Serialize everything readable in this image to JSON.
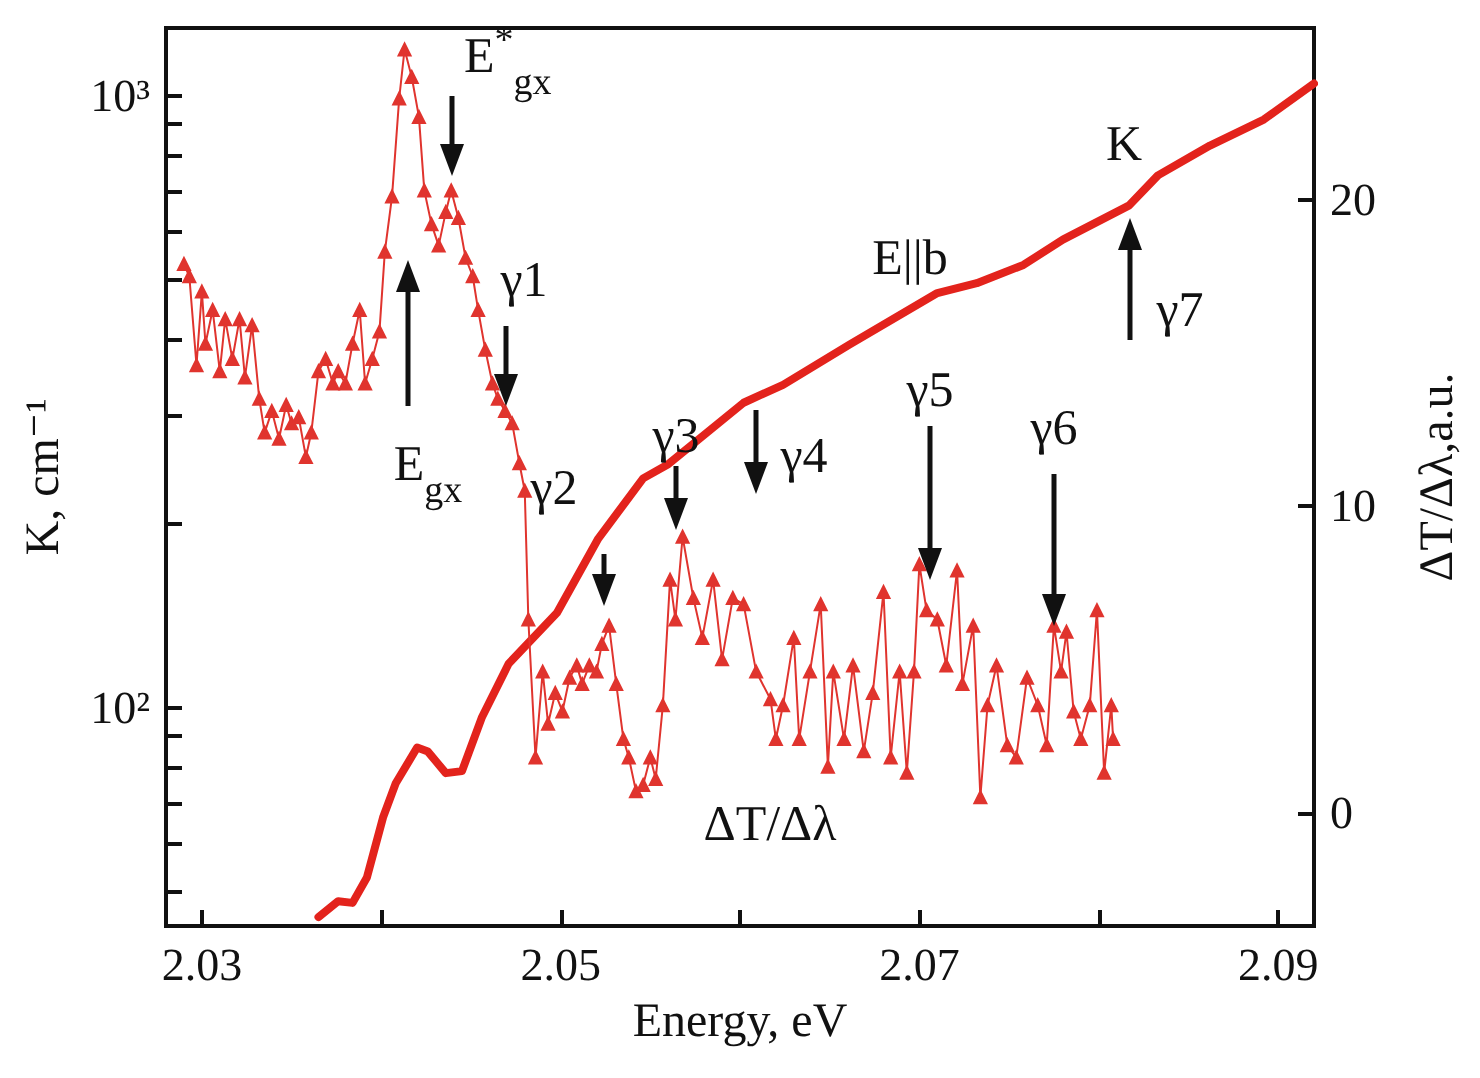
{
  "chart_data": {
    "type": "line",
    "xlabel": "Energy, eV",
    "ylabel": "K, cm⁻¹",
    "y2label": "ΔT/Δλ,a.u.",
    "xlim": [
      2.028,
      2.092
    ],
    "xticks": [
      2.03,
      {
        "value": 2.04,
        "label": null
      },
      2.05,
      {
        "value": 2.06,
        "label": null
      },
      2.07,
      {
        "value": 2.08,
        "label": null
      },
      2.09
    ],
    "ylim": [
      44,
      1290
    ],
    "log": "y",
    "yticks": [
      {
        "value": 50,
        "label": null
      },
      {
        "value": 60,
        "label": null
      },
      {
        "value": 70,
        "label": null
      },
      {
        "value": 80,
        "label": null
      },
      {
        "value": 90,
        "label": null
      },
      {
        "value": 100,
        "label": "10²"
      },
      {
        "value": 200,
        "label": null
      },
      {
        "value": 300,
        "label": null
      },
      {
        "value": 400,
        "label": null
      },
      {
        "value": 500,
        "label": null
      },
      {
        "value": 600,
        "label": null
      },
      {
        "value": 700,
        "label": null
      },
      {
        "value": 800,
        "label": null
      },
      {
        "value": 900,
        "label": null
      },
      {
        "value": 1000,
        "label": "10³"
      }
    ],
    "y2lim": [
      -3.7,
      25.6
    ],
    "y2ticks": [
      0,
      10,
      20
    ],
    "grid": false,
    "legend": false,
    "series": [
      {
        "name": "K",
        "color": "#e3231c",
        "marker": "none",
        "x": [
          2.0365,
          2.0376,
          2.0384,
          2.0392,
          2.0401,
          2.0408,
          2.042,
          2.0426,
          2.0436,
          2.0445,
          2.0456,
          2.0471,
          2.0498,
          2.0521,
          2.0546,
          2.056,
          2.0602,
          2.0624,
          2.0661,
          2.071,
          2.0732,
          2.0758,
          2.078,
          2.0817,
          2.0833,
          2.0862,
          2.0892,
          2.092
        ],
        "values": [
          45.5,
          48.3,
          48,
          52.8,
          66.2,
          75.2,
          86.1,
          84.8,
          78.2,
          78.8,
          96.3,
          118,
          143,
          189,
          237,
          250,
          315,
          337,
          392,
          476,
          494,
          529,
          582,
          662,
          741,
          829,
          914,
          1047
        ]
      },
      {
        "name": "ΔT/Δλ",
        "color": "#e0342e",
        "marker": "triangle",
        "axis": "y2",
        "x": [
          2.029,
          2.0293,
          2.0297,
          2.03,
          2.0302,
          2.0306,
          2.031,
          2.0313,
          2.0317,
          2.0321,
          2.0324,
          2.0328,
          2.0332,
          2.0335,
          2.0339,
          2.0343,
          2.0347,
          2.035,
          2.0354,
          2.0358,
          2.0361,
          2.0365,
          2.0369,
          2.0373,
          2.0376,
          2.038,
          2.0384,
          2.0388,
          2.0391,
          2.0395,
          2.0399,
          2.0402,
          2.0406,
          2.041,
          2.0413,
          2.0417,
          2.0421,
          2.0424,
          2.0428,
          2.0432,
          2.0436,
          2.0439,
          2.0443,
          2.0447,
          2.0451,
          2.0454,
          2.0458,
          2.0462,
          2.0465,
          2.0469,
          2.0473,
          2.0477,
          2.048,
          2.0482,
          2.0486,
          2.049,
          2.0493,
          2.0497,
          2.0501,
          2.0505,
          2.0509,
          2.0512,
          2.0516,
          2.052,
          2.0523,
          2.0527,
          2.0531,
          2.0535,
          2.0538,
          2.0542,
          2.0546,
          2.055,
          2.0553,
          2.0557,
          2.0561,
          2.0564,
          2.0568,
          2.0574,
          2.0579,
          2.0585,
          2.059,
          2.0596,
          2.0602,
          2.0609,
          2.0617,
          2.062,
          2.0624,
          2.063,
          2.0633,
          2.0639,
          2.0645,
          2.0649,
          2.0652,
          2.0658,
          2.0663,
          2.0669,
          2.0674,
          2.068,
          2.0684,
          2.0689,
          2.0693,
          2.0697,
          2.07,
          2.0704,
          2.071,
          2.0715,
          2.0721,
          2.0724,
          2.073,
          2.0734,
          2.0738,
          2.0743,
          2.0749,
          2.0754,
          2.076,
          2.0766,
          2.0771,
          2.0775,
          2.0779,
          2.0782,
          2.0786,
          2.079,
          2.0795,
          2.0799,
          2.0803,
          2.0807,
          2.0808
        ],
        "values": [
          17.9,
          17.5,
          14.6,
          17,
          15.3,
          16.4,
          14.4,
          16.1,
          14.8,
          16.1,
          14.2,
          15.9,
          13.5,
          12.4,
          13.1,
          12.2,
          13.3,
          12.7,
          12.9,
          11.6,
          12.4,
          14.4,
          14.8,
          14,
          14.4,
          14,
          15.3,
          16.4,
          14,
          14.8,
          15.7,
          18.3,
          20.1,
          23.3,
          24.9,
          24,
          22.7,
          20.3,
          19.2,
          18.5,
          19.6,
          20.3,
          19.4,
          18.1,
          17.5,
          16.4,
          15.1,
          14,
          13.5,
          13.1,
          12.7,
          11.4,
          10.5,
          6.3,
          1.8,
          4.6,
          2.9,
          3.9,
          3.3,
          4.4,
          4.8,
          4.2,
          4.8,
          4.6,
          5.5,
          6.1,
          4.2,
          2.4,
          1.8,
          0.7,
          0.9,
          1.8,
          1.1,
          3.5,
          7.6,
          6.3,
          9,
          7,
          5.7,
          7.6,
          5,
          7,
          6.8,
          4.6,
          3.7,
          2.4,
          3.5,
          5.7,
          2.4,
          4.6,
          6.8,
          1.5,
          4.6,
          2.4,
          4.8,
          2,
          3.9,
          7.2,
          1.8,
          4.6,
          1.3,
          4.6,
          8.1,
          6.6,
          6.3,
          4.8,
          7.9,
          4.2,
          6.1,
          0.5,
          3.5,
          4.8,
          2.2,
          1.8,
          4.4,
          3.5,
          2.2,
          6.1,
          4.6,
          5.9,
          3.3,
          2.4,
          3.5,
          6.6,
          1.3,
          3.5,
          2.4
        ]
      }
    ],
    "annotations": [
      "E$_{gx}$",
      "E$^{*}$$_{gx}$",
      "γ1",
      "γ2",
      "γ3",
      "γ4",
      "γ5",
      "γ6",
      "γ7",
      "E||b"
    ]
  }
}
